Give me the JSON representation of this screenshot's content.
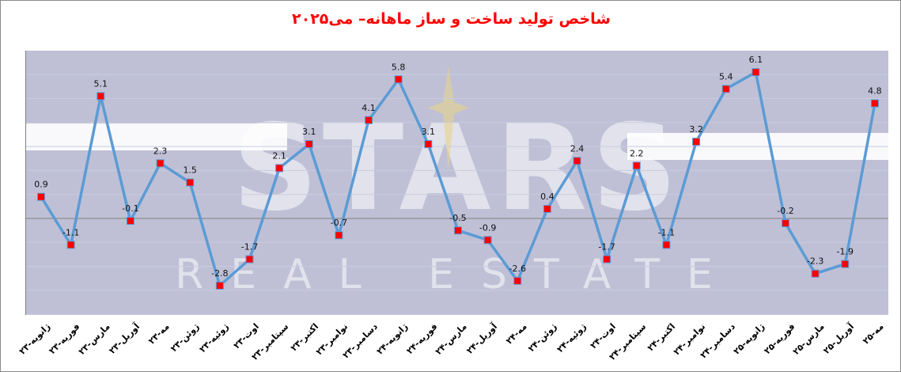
{
  "chart_data": {
    "type": "line",
    "title": "شاخص تولید ساخت و ساز ماهانه– می۲۰۲۵",
    "xlabel": "",
    "ylabel": "",
    "ylim": [
      -4,
      7
    ],
    "grid": true,
    "legend": null,
    "categories": [
      "ژانویه-۲۳",
      "فوریه-۲۳",
      "مارس-۲۳",
      "آوریل-۲۳",
      "مه-۲۳",
      "ژوئن-۲۳",
      "ژوئیه-۲۳",
      "اوت-۲۳",
      "سپتامبر-۲۳",
      "اکتبر-۲۳",
      "نوامبر-۲۳",
      "دسامبر-۲۳",
      "ژانویه-۲۴",
      "فوریه-۲۴",
      "مارس-۲۴",
      "آوریل-۲۴",
      "مه-۲۴",
      "ژوئن-۲۴",
      "ژوئیه-۲۴",
      "اوت-۲۴",
      "سپتامبر-۲۴",
      "اکتبر-۲۴",
      "نوامبر-۲۴",
      "دسامبر-۲۴",
      "ژانویه-۲۵",
      "فوریه-۲۵",
      "مارس-۲۵",
      "آوریل-۲۵",
      "مه-۲۵"
    ],
    "values": [
      0.9,
      -1.1,
      5.1,
      -0.1,
      2.3,
      1.5,
      -2.8,
      -1.7,
      2.1,
      3.1,
      -0.7,
      4.1,
      5.8,
      3.1,
      -0.5,
      -0.9,
      -2.6,
      0.4,
      2.4,
      -1.7,
      2.2,
      -1.1,
      3.2,
      5.4,
      6.1,
      -0.2,
      -2.3,
      -1.9,
      4.8
    ],
    "data_labels": [
      "0.9",
      "-1.1",
      "5.1",
      "-0.1",
      "2.3",
      "1.5",
      "-2.8",
      "-1.7",
      "2.1",
      "3.1",
      "-0.7",
      "4.1",
      "5.8",
      "3.1",
      "-0.5",
      "-0.9",
      "-2.6",
      "0.4",
      "2.4",
      "-1.7",
      "2.2",
      "-1.1",
      "3.2",
      "5.4",
      "6.1",
      "-0.2",
      "-2.3",
      "-1.9",
      "4.8"
    ],
    "colors": {
      "line": "#5b9bd5",
      "marker": "#ff0000",
      "plot_background": "#bfc0d6",
      "title": "#ff0000",
      "zero_axis": "#7f7f7f",
      "gridline": "#c9cce0"
    }
  },
  "watermark": {
    "brand": "STARS",
    "tagline": "REAL ESTATE"
  }
}
